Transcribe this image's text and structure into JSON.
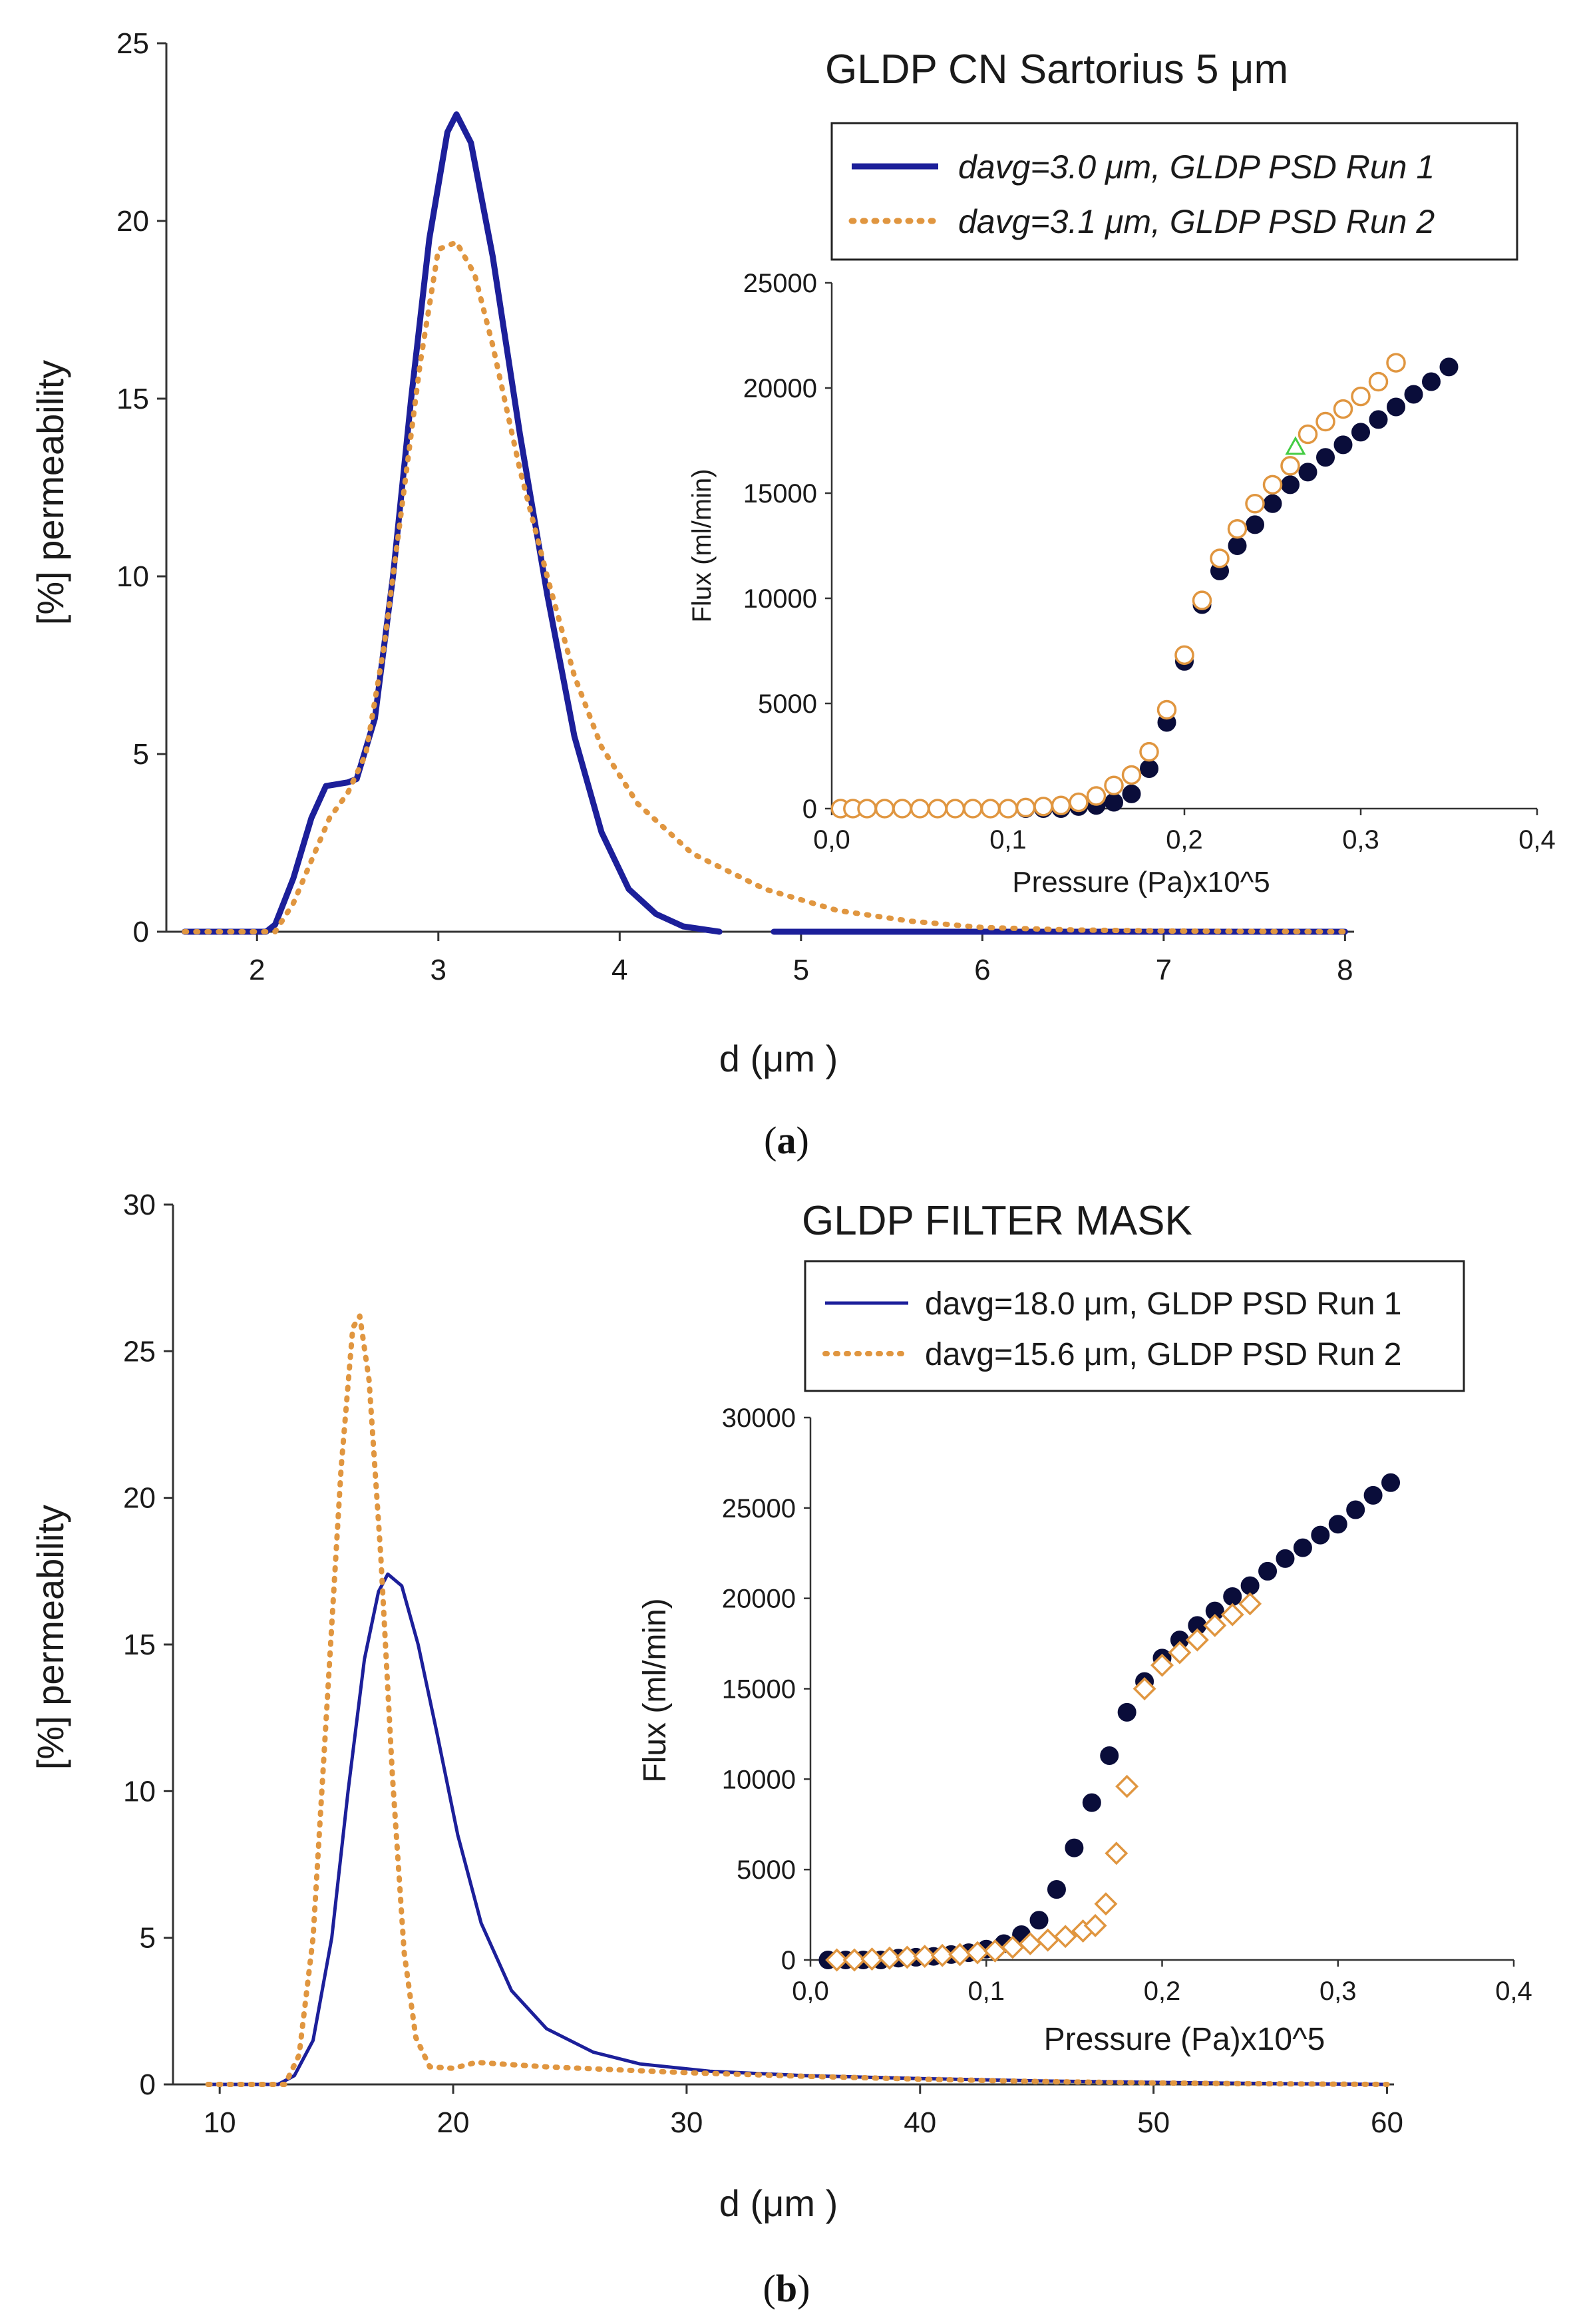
{
  "colors": {
    "run1": "#1c1f9a",
    "run2": "#e09640",
    "axis": "#333333",
    "marker_dark": "#0a0d3a",
    "marker_triangle": "#44cc44"
  },
  "captions": [
    "(a)",
    "(b)"
  ],
  "chart_data": [
    {
      "panel": "a",
      "type": "line",
      "title": "GLDP CN Sartorius 5 μm",
      "xlabel": "d (μm )",
      "ylabel": "[%] permeability",
      "xlim": [
        1.5,
        8
      ],
      "ylim": [
        0,
        25
      ],
      "xticks": [
        "2",
        "3",
        "4",
        "5",
        "6",
        "7",
        "8"
      ],
      "yticks": [
        "0",
        "5",
        "10",
        "15",
        "20",
        "25"
      ],
      "legend_position": "top-right",
      "series": [
        {
          "name": "davg=3.0 μm, GLDP PSD Run 1",
          "style": "solid",
          "legend_italic": true,
          "segments": [
            [
              [
                1.6,
                0
              ],
              [
                2.05,
                0
              ],
              [
                2.1,
                0.2
              ],
              [
                2.2,
                1.5
              ],
              [
                2.3,
                3.2
              ],
              [
                2.38,
                4.1
              ],
              [
                2.5,
                4.2
              ],
              [
                2.55,
                4.3
              ],
              [
                2.65,
                6
              ],
              [
                2.75,
                10
              ],
              [
                2.85,
                15
              ],
              [
                2.95,
                19.5
              ],
              [
                3.05,
                22.5
              ],
              [
                3.1,
                23
              ],
              [
                3.18,
                22.2
              ],
              [
                3.3,
                19
              ],
              [
                3.45,
                14
              ],
              [
                3.6,
                9.5
              ],
              [
                3.75,
                5.5
              ],
              [
                3.9,
                2.8
              ],
              [
                4.05,
                1.2
              ],
              [
                4.2,
                0.5
              ],
              [
                4.35,
                0.15
              ],
              [
                4.55,
                0
              ]
            ],
            [
              [
                4.85,
                0
              ],
              [
                8,
                0
              ]
            ]
          ]
        },
        {
          "name": "davg=3.1 μm, GLDP PSD Run 2",
          "style": "dotted",
          "legend_italic": true,
          "segments": [
            [
              [
                1.6,
                0
              ],
              [
                2.1,
                0
              ],
              [
                2.2,
                0.8
              ],
              [
                2.3,
                2
              ],
              [
                2.4,
                3.2
              ],
              [
                2.5,
                3.9
              ],
              [
                2.6,
                5
              ],
              [
                2.7,
                8
              ],
              [
                2.8,
                12
              ],
              [
                2.9,
                16
              ],
              [
                3.0,
                19.2
              ],
              [
                3.1,
                19.4
              ],
              [
                3.2,
                18.5
              ],
              [
                3.3,
                16.5
              ],
              [
                3.45,
                13
              ],
              [
                3.6,
                10
              ],
              [
                3.75,
                7.2
              ],
              [
                3.9,
                5.2
              ],
              [
                4.1,
                3.6
              ],
              [
                4.4,
                2.2
              ],
              [
                4.8,
                1.2
              ],
              [
                5.2,
                0.6
              ],
              [
                5.6,
                0.3
              ],
              [
                6,
                0.12
              ],
              [
                6.5,
                0.05
              ],
              [
                7,
                0.02
              ],
              [
                8,
                0
              ]
            ]
          ]
        }
      ],
      "inset": {
        "xlabel": "Pressure (Pa)x10^5",
        "ylabel": "Flux (ml/min)",
        "xlim": [
          0,
          0.4
        ],
        "ylim": [
          0,
          25000
        ],
        "xticks": [
          "0,0",
          "0,1",
          "0,2",
          "0,3",
          "0,4"
        ],
        "yticks": [
          "0",
          "5000",
          "10000",
          "15000",
          "20000",
          "25000"
        ],
        "marker_run1": "filled-circle",
        "marker_run2": "open-circle",
        "run1_points": [
          [
            0.005,
            0
          ],
          [
            0.012,
            0
          ],
          [
            0.02,
            0
          ],
          [
            0.03,
            0
          ],
          [
            0.04,
            0
          ],
          [
            0.05,
            0
          ],
          [
            0.06,
            0
          ],
          [
            0.07,
            0
          ],
          [
            0.08,
            0
          ],
          [
            0.09,
            0
          ],
          [
            0.1,
            0
          ],
          [
            0.11,
            0
          ],
          [
            0.12,
            0
          ],
          [
            0.13,
            0
          ],
          [
            0.14,
            100
          ],
          [
            0.15,
            150
          ],
          [
            0.16,
            300
          ],
          [
            0.17,
            700
          ],
          [
            0.18,
            1900
          ],
          [
            0.19,
            4100
          ],
          [
            0.2,
            7000
          ],
          [
            0.21,
            9700
          ],
          [
            0.22,
            11300
          ],
          [
            0.23,
            12500
          ],
          [
            0.24,
            13500
          ],
          [
            0.25,
            14500
          ],
          [
            0.26,
            15400
          ],
          [
            0.27,
            16000
          ],
          [
            0.28,
            16700
          ],
          [
            0.29,
            17300
          ],
          [
            0.3,
            17900
          ],
          [
            0.31,
            18500
          ],
          [
            0.32,
            19100
          ],
          [
            0.33,
            19700
          ],
          [
            0.34,
            20300
          ],
          [
            0.35,
            21000
          ]
        ],
        "run2_points": [
          [
            0.005,
            0
          ],
          [
            0.012,
            0
          ],
          [
            0.02,
            0
          ],
          [
            0.03,
            0
          ],
          [
            0.04,
            0
          ],
          [
            0.05,
            0
          ],
          [
            0.06,
            0
          ],
          [
            0.07,
            0
          ],
          [
            0.08,
            0
          ],
          [
            0.09,
            0
          ],
          [
            0.1,
            0
          ],
          [
            0.11,
            50
          ],
          [
            0.12,
            100
          ],
          [
            0.13,
            150
          ],
          [
            0.14,
            300
          ],
          [
            0.15,
            600
          ],
          [
            0.16,
            1100
          ],
          [
            0.17,
            1600
          ],
          [
            0.18,
            2700
          ],
          [
            0.19,
            4700
          ],
          [
            0.2,
            7300
          ],
          [
            0.21,
            9900
          ],
          [
            0.22,
            11900
          ],
          [
            0.23,
            13300
          ],
          [
            0.24,
            14500
          ],
          [
            0.25,
            15400
          ],
          [
            0.26,
            16300
          ],
          [
            0.27,
            17800
          ],
          [
            0.28,
            18400
          ],
          [
            0.29,
            19000
          ],
          [
            0.3,
            19600
          ],
          [
            0.31,
            20300
          ],
          [
            0.32,
            21200
          ]
        ],
        "extra_points": [
          [
            0.263,
            17200
          ]
        ]
      }
    },
    {
      "panel": "b",
      "type": "line",
      "title": "GLDP FILTER MASK",
      "xlabel": "d (μm )",
      "ylabel": "[%] permeability",
      "xlim": [
        8,
        60
      ],
      "ylim": [
        0,
        30
      ],
      "xticks": [
        "10",
        "20",
        "30",
        "40",
        "50",
        "60"
      ],
      "yticks": [
        "0",
        "5",
        "10",
        "15",
        "20",
        "25",
        "30"
      ],
      "legend_position": "top-right",
      "series": [
        {
          "name": "davg=18.0 μm, GLDP PSD Run 1",
          "style": "solid",
          "legend_italic": false,
          "segments": [
            [
              [
                9.5,
                0
              ],
              [
                12.5,
                0
              ],
              [
                13.2,
                0.3
              ],
              [
                14,
                1.5
              ],
              [
                14.8,
                5
              ],
              [
                15.5,
                10
              ],
              [
                16.2,
                14.5
              ],
              [
                16.8,
                16.8
              ],
              [
                17.2,
                17.4
              ],
              [
                17.8,
                17
              ],
              [
                18.5,
                15
              ],
              [
                19.3,
                12
              ],
              [
                20.2,
                8.5
              ],
              [
                21.2,
                5.5
              ],
              [
                22.5,
                3.2
              ],
              [
                24,
                1.9
              ],
              [
                26,
                1.1
              ],
              [
                28,
                0.7
              ],
              [
                31,
                0.45
              ],
              [
                35,
                0.3
              ],
              [
                40,
                0.2
              ],
              [
                45,
                0.12
              ],
              [
                50,
                0.07
              ],
              [
                55,
                0.03
              ],
              [
                60,
                0
              ]
            ]
          ]
        },
        {
          "name": "davg=15.6 μm, GLDP PSD Run 2",
          "style": "dotted",
          "legend_italic": false,
          "segments": [
            [
              [
                9.5,
                0
              ],
              [
                12.8,
                0
              ],
              [
                13.4,
                1
              ],
              [
                14,
                5
              ],
              [
                14.6,
                13
              ],
              [
                15.2,
                21
              ],
              [
                15.7,
                25.8
              ],
              [
                16,
                26.2
              ],
              [
                16.4,
                24
              ],
              [
                16.9,
                18
              ],
              [
                17.4,
                10.5
              ],
              [
                17.9,
                4.5
              ],
              [
                18.4,
                1.6
              ],
              [
                19,
                0.6
              ],
              [
                20,
                0.55
              ],
              [
                21,
                0.75
              ],
              [
                22,
                0.7
              ],
              [
                24,
                0.6
              ],
              [
                27,
                0.5
              ],
              [
                30,
                0.4
              ],
              [
                35,
                0.28
              ],
              [
                40,
                0.18
              ],
              [
                45,
                0.1
              ],
              [
                50,
                0.05
              ],
              [
                55,
                0.02
              ],
              [
                60,
                0
              ]
            ]
          ]
        }
      ],
      "inset": {
        "xlabel": "Pressure (Pa)x10^5",
        "ylabel": "Flux (ml/min)",
        "xlim": [
          0,
          0.4
        ],
        "ylim": [
          0,
          30000
        ],
        "xticks": [
          "0,0",
          "0,1",
          "0,2",
          "0,3",
          "0,4"
        ],
        "yticks": [
          "0",
          "5000",
          "10000",
          "15000",
          "20000",
          "25000",
          "30000"
        ],
        "marker_run1": "filled-circle",
        "marker_run2": "open-diamond",
        "run1_points": [
          [
            0.01,
            0
          ],
          [
            0.02,
            0
          ],
          [
            0.03,
            0
          ],
          [
            0.04,
            0
          ],
          [
            0.05,
            100
          ],
          [
            0.06,
            150
          ],
          [
            0.07,
            200
          ],
          [
            0.08,
            300
          ],
          [
            0.09,
            400
          ],
          [
            0.1,
            600
          ],
          [
            0.11,
            900
          ],
          [
            0.12,
            1400
          ],
          [
            0.13,
            2200
          ],
          [
            0.14,
            3900
          ],
          [
            0.15,
            6200
          ],
          [
            0.16,
            8700
          ],
          [
            0.17,
            11300
          ],
          [
            0.18,
            13700
          ],
          [
            0.19,
            15400
          ],
          [
            0.2,
            16700
          ],
          [
            0.21,
            17700
          ],
          [
            0.22,
            18500
          ],
          [
            0.23,
            19300
          ],
          [
            0.24,
            20100
          ],
          [
            0.25,
            20700
          ],
          [
            0.26,
            21500
          ],
          [
            0.27,
            22200
          ],
          [
            0.28,
            22800
          ],
          [
            0.29,
            23500
          ],
          [
            0.3,
            24100
          ],
          [
            0.31,
            24900
          ],
          [
            0.32,
            25700
          ],
          [
            0.33,
            26400
          ]
        ],
        "run2_points": [
          [
            0.015,
            0
          ],
          [
            0.025,
            0
          ],
          [
            0.035,
            50
          ],
          [
            0.045,
            100
          ],
          [
            0.055,
            150
          ],
          [
            0.065,
            200
          ],
          [
            0.075,
            250
          ],
          [
            0.085,
            300
          ],
          [
            0.095,
            400
          ],
          [
            0.105,
            500
          ],
          [
            0.115,
            700
          ],
          [
            0.125,
            900
          ],
          [
            0.135,
            1100
          ],
          [
            0.145,
            1300
          ],
          [
            0.155,
            1600
          ],
          [
            0.162,
            1900
          ],
          [
            0.168,
            3100
          ],
          [
            0.174,
            5900
          ],
          [
            0.18,
            9600
          ],
          [
            0.19,
            15000
          ],
          [
            0.2,
            16300
          ],
          [
            0.21,
            17000
          ],
          [
            0.22,
            17700
          ],
          [
            0.23,
            18500
          ],
          [
            0.24,
            19100
          ],
          [
            0.25,
            19700
          ]
        ]
      }
    }
  ]
}
